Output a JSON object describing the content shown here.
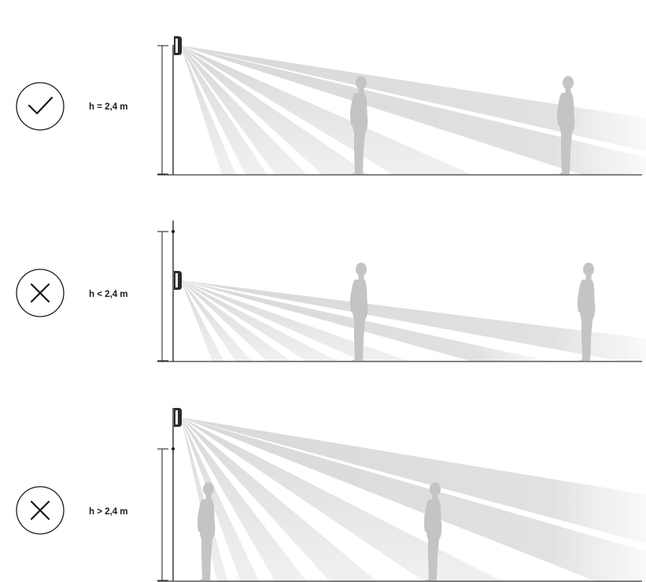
{
  "scenarios": [
    {
      "id": "correct",
      "label": "h = 2,4 m",
      "status": "correct",
      "status_icon": "checkmark-icon"
    },
    {
      "id": "too-low",
      "label": "h < 2,4 m",
      "status": "incorrect",
      "status_icon": "cross-icon"
    },
    {
      "id": "too-high",
      "label": "h > 2,4 m",
      "status": "incorrect",
      "status_icon": "cross-icon"
    }
  ],
  "colors": {
    "ink": "#1a1a1a",
    "floor": "#3a3a3a",
    "beam": "#d9d9d9",
    "figure": "#c6c6c6",
    "detector": "#2b2b2b"
  }
}
